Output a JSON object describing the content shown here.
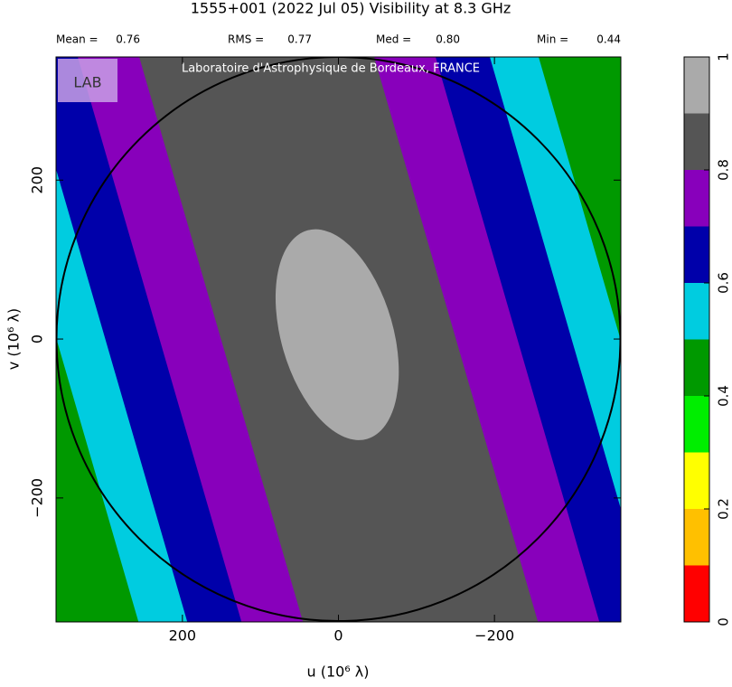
{
  "chart_data": {
    "type": "visibility-map",
    "title": "1555+001   (2022 Jul 05)   Visibility at  8.3 GHz",
    "stats": [
      {
        "label": "Mean =",
        "value": "0.76"
      },
      {
        "label": "RMS =",
        "value": "0.77"
      },
      {
        "label": "Med =",
        "value": "0.80"
      },
      {
        "label": "Min =",
        "value": "0.44"
      }
    ],
    "watermark": "Laboratoire d'Astrophysique de Bordeaux, FRANCE",
    "logo": "LAB",
    "xlabel": "u  (10⁶ λ)",
    "ylabel": "v  (10⁶ λ)",
    "xlim": [
      362,
      -362
    ],
    "ylim": [
      -356,
      355
    ],
    "xticks": [
      200,
      0,
      {
        "value": -200,
        "label": "−200"
      }
    ],
    "yticks": [
      {
        "value": -200,
        "label": "−200"
      },
      0,
      200
    ],
    "colorbar": {
      "levels": [
        0,
        0.1,
        0.2,
        0.3,
        0.4,
        0.5,
        0.6,
        0.7,
        0.8,
        0.9,
        1
      ],
      "colors": [
        "#ff0000",
        "#ffc000",
        "#ffff00",
        "#00ee00",
        "#009900",
        "#00cce0",
        "#0000aa",
        "#8800bb",
        "#555555",
        "#aaaaaa"
      ],
      "ticks": [
        0,
        0.2,
        0.4,
        0.6,
        0.8,
        1
      ]
    }
  }
}
